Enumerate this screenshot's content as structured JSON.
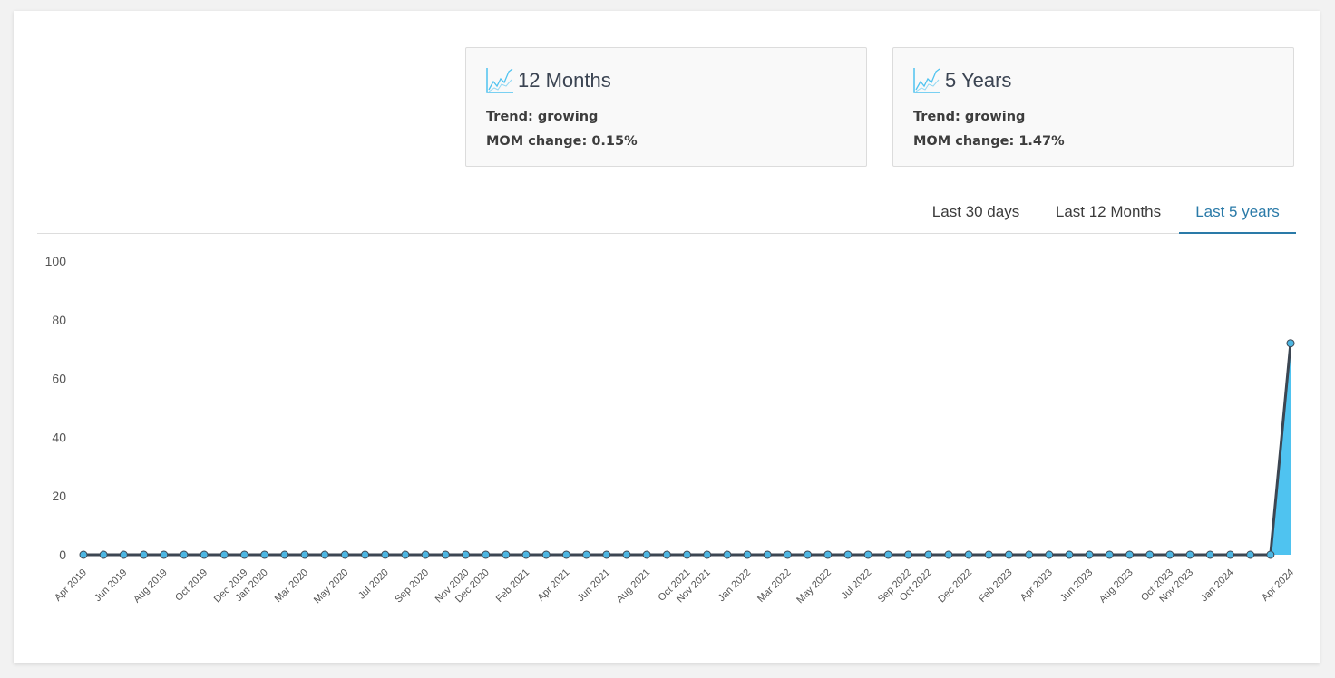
{
  "cards": [
    {
      "title": "12 Months",
      "trend": "Trend: growing",
      "mom": "MOM change: 0.15%",
      "icon": "line-chart-icon"
    },
    {
      "title": "5 Years",
      "trend": "Trend: growing",
      "mom": "MOM change: 1.47%",
      "icon": "line-chart-icon"
    }
  ],
  "tabs": [
    {
      "label": "Last 30 days",
      "active": false
    },
    {
      "label": "Last 12 Months",
      "active": false
    },
    {
      "label": "Last 5 years",
      "active": true
    }
  ],
  "colors": {
    "line": "#3c4652",
    "fill": "#4fc3f0",
    "point": "#4db6e2",
    "accent": "#2a7aa8",
    "icon": "#4fc3f0"
  },
  "chart_data": {
    "type": "area",
    "ylim": [
      0,
      100
    ],
    "yticks": [
      0,
      20,
      40,
      60,
      80,
      100
    ],
    "grid": false,
    "xlabel": "",
    "ylabel": "",
    "x": [
      "Apr 2019",
      "May 2019",
      "Jun 2019",
      "Jul 2019",
      "Aug 2019",
      "Sep 2019",
      "Oct 2019",
      "Nov 2019",
      "Dec 2019",
      "Jan 2020",
      "Feb 2020",
      "Mar 2020",
      "Apr 2020",
      "May 2020",
      "Jun 2020",
      "Jul 2020",
      "Aug 2020",
      "Sep 2020",
      "Oct 2020",
      "Nov 2020",
      "Dec 2020",
      "Jan 2021",
      "Feb 2021",
      "Mar 2021",
      "Apr 2021",
      "May 2021",
      "Jun 2021",
      "Jul 2021",
      "Aug 2021",
      "Sep 2021",
      "Oct 2021",
      "Nov 2021",
      "Dec 2021",
      "Jan 2022",
      "Feb 2022",
      "Mar 2022",
      "Apr 2022",
      "May 2022",
      "Jun 2022",
      "Jul 2022",
      "Aug 2022",
      "Sep 2022",
      "Oct 2022",
      "Nov 2022",
      "Dec 2022",
      "Jan 2023",
      "Feb 2023",
      "Mar 2023",
      "Apr 2023",
      "May 2023",
      "Jun 2023",
      "Jul 2023",
      "Aug 2023",
      "Sep 2023",
      "Oct 2023",
      "Nov 2023",
      "Dec 2023",
      "Jan 2024",
      "Feb 2024",
      "Mar 2024",
      "Apr 2024"
    ],
    "xtick_labels": [
      "Apr 2019",
      "Jun 2019",
      "Aug 2019",
      "Oct 2019",
      "Dec 2019",
      "Jan 2020",
      "Mar 2020",
      "May 2020",
      "Jul 2020",
      "Sep 2020",
      "Nov 2020",
      "Dec 2020",
      "Feb 2021",
      "Apr 2021",
      "Jun 2021",
      "Aug 2021",
      "Oct 2021",
      "Nov 2021",
      "Jan 2022",
      "Mar 2022",
      "May 2022",
      "Jul 2022",
      "Sep 2022",
      "Oct 2022",
      "Dec 2022",
      "Feb 2023",
      "Apr 2023",
      "Jun 2023",
      "Aug 2023",
      "Oct 2023",
      "Nov 2023",
      "Jan 2024",
      "Apr 2024"
    ],
    "values": [
      0,
      0,
      0,
      0,
      0,
      0,
      0,
      0,
      0,
      0,
      0,
      0,
      0,
      0,
      0,
      0,
      0,
      0,
      0,
      0,
      0,
      0,
      0,
      0,
      0,
      0,
      0,
      0,
      0,
      0,
      0,
      0,
      0,
      0,
      0,
      0,
      0,
      0,
      0,
      0,
      0,
      0,
      0,
      0,
      0,
      0,
      0,
      0,
      0,
      0,
      0,
      0,
      0,
      0,
      0,
      0,
      0,
      0,
      0,
      0,
      72
    ]
  }
}
